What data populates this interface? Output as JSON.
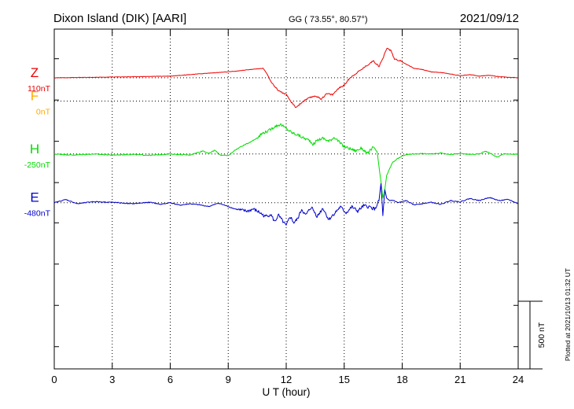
{
  "header": {
    "station": "Dixon Island (DIK)  [AARI]",
    "coords": "GG ( 73.55°,  80.57°)",
    "date": "2021/09/12"
  },
  "footer": {
    "plotted": "Plotted at 2021/10/13 01:32 UT"
  },
  "chart_data": {
    "type": "line",
    "title": "Dixon Island (DIK)  [AARI]",
    "xlabel": "U T (hour)",
    "ylabel": "",
    "xlim": [
      0,
      24
    ],
    "x_ticks": [
      0,
      3,
      6,
      9,
      12,
      15,
      18,
      21,
      24
    ],
    "x_tick_labels": [
      "0",
      "3",
      "6",
      "9",
      "12",
      "15",
      "18",
      "21",
      "24"
    ],
    "y_unit": "nT",
    "y_range_nT": [
      -1265,
      340
    ],
    "grid": true,
    "scale_bar": {
      "value_nT": 500,
      "label": "500 nT"
    },
    "colors": {
      "F": "#ffaa00",
      "H": "#00dd00",
      "E": "#0000cc",
      "Z": "#ee0000",
      "grid": "#000000"
    },
    "series": [
      {
        "name": "F",
        "baseline_label": "0nT",
        "baseline_nT": 0,
        "x": [],
        "y": []
      },
      {
        "name": "H",
        "baseline_label": "-250nT",
        "baseline_nT": -250,
        "x": [
          0,
          1,
          2,
          3,
          4,
          5,
          6,
          7,
          7.7,
          8,
          8.3,
          8.6,
          9,
          9.3,
          9.6,
          10,
          10.4,
          10.8,
          11.1,
          11.4,
          11.7,
          12,
          12.3,
          12.6,
          12.9,
          13.2,
          13.4,
          13.6,
          13.9,
          14.2,
          14.5,
          14.8,
          15,
          15.3,
          15.6,
          15.9,
          16.2,
          16.5,
          16.7,
          16.8,
          16.9,
          17.0,
          17.1,
          17.2,
          17.3,
          17.5,
          17.8,
          18.1,
          18.5,
          19,
          19.5,
          20,
          20.5,
          21,
          21.5,
          22,
          22.3,
          22.6,
          22.9,
          23.3,
          23.7,
          24
        ],
        "y": [
          -250,
          -255,
          -250,
          -255,
          -252,
          -256,
          -250,
          -255,
          -235,
          -248,
          -232,
          -255,
          -258,
          -235,
          -218,
          -200,
          -180,
          -150,
          -140,
          -120,
          -110,
          -130,
          -150,
          -160,
          -175,
          -185,
          -205,
          -185,
          -175,
          -190,
          -170,
          -200,
          -215,
          -225,
          -235,
          -222,
          -250,
          -215,
          -240,
          -310,
          -380,
          -460,
          -420,
          -350,
          -330,
          -290,
          -270,
          -255,
          -250,
          -248,
          -250,
          -245,
          -252,
          -248,
          -252,
          -250,
          -236,
          -248,
          -265,
          -248,
          -252,
          -250
        ]
      },
      {
        "name": "E",
        "baseline_label": "-480nT",
        "baseline_nT": -480,
        "x": [
          0,
          0.6,
          1.2,
          2,
          3,
          4,
          5,
          5.5,
          6,
          6.5,
          7,
          7.5,
          8,
          8.5,
          9,
          9.3,
          9.6,
          10,
          10.3,
          10.6,
          10.9,
          11.2,
          11.4,
          11.6,
          11.8,
          12,
          12.2,
          12.4,
          12.6,
          12.8,
          13,
          13.3,
          13.6,
          13.9,
          14.2,
          14.5,
          14.8,
          15.1,
          15.4,
          15.7,
          16,
          16.3,
          16.6,
          16.8,
          16.9,
          17.0,
          17.1,
          17.2,
          17.35,
          17.5,
          17.8,
          18.2,
          18.6,
          19,
          19.5,
          20,
          20.5,
          21,
          21.5,
          22,
          22.5,
          23,
          23.5,
          24
        ],
        "y": [
          -480,
          -465,
          -485,
          -475,
          -478,
          -485,
          -478,
          -488,
          -480,
          -492,
          -485,
          -490,
          -498,
          -482,
          -498,
          -508,
          -515,
          -520,
          -510,
          -525,
          -545,
          -535,
          -570,
          -540,
          -565,
          -590,
          -545,
          -575,
          -555,
          -510,
          -540,
          -500,
          -545,
          -505,
          -560,
          -530,
          -500,
          -528,
          -500,
          -520,
          -495,
          -500,
          -510,
          -470,
          -390,
          -540,
          -420,
          -460,
          -470,
          -468,
          -480,
          -470,
          -490,
          -485,
          -478,
          -488,
          -470,
          -476,
          -460,
          -470,
          -455,
          -470,
          -465,
          -485
        ]
      },
      {
        "name": "Z",
        "baseline_label": "110nT",
        "baseline_nT": 110,
        "x": [
          0,
          2,
          4,
          6,
          7,
          8,
          9,
          9.5,
          10,
          10.5,
          10.8,
          11,
          11.3,
          11.6,
          12,
          12.3,
          12.5,
          12.7,
          12.9,
          13.2,
          13.5,
          13.8,
          14.1,
          14.4,
          14.7,
          15,
          15.3,
          15.6,
          15.9,
          16.2,
          16.5,
          16.8,
          17.0,
          17.2,
          17.4,
          17.6,
          17.9,
          18.2,
          18.6,
          19,
          19.5,
          20,
          20.5,
          21,
          21.5,
          22,
          22.5,
          23,
          23.5,
          24
        ],
        "y": [
          110,
          112,
          115,
          118,
          125,
          132,
          138,
          142,
          148,
          152,
          155,
          130,
          80,
          50,
          30,
          -10,
          -30,
          -15,
          0,
          15,
          25,
          10,
          35,
          30,
          60,
          75,
          110,
          130,
          150,
          170,
          190,
          165,
          200,
          250,
          240,
          200,
          190,
          175,
          155,
          150,
          138,
          135,
          128,
          120,
          125,
          118,
          122,
          115,
          112,
          110
        ]
      }
    ]
  }
}
